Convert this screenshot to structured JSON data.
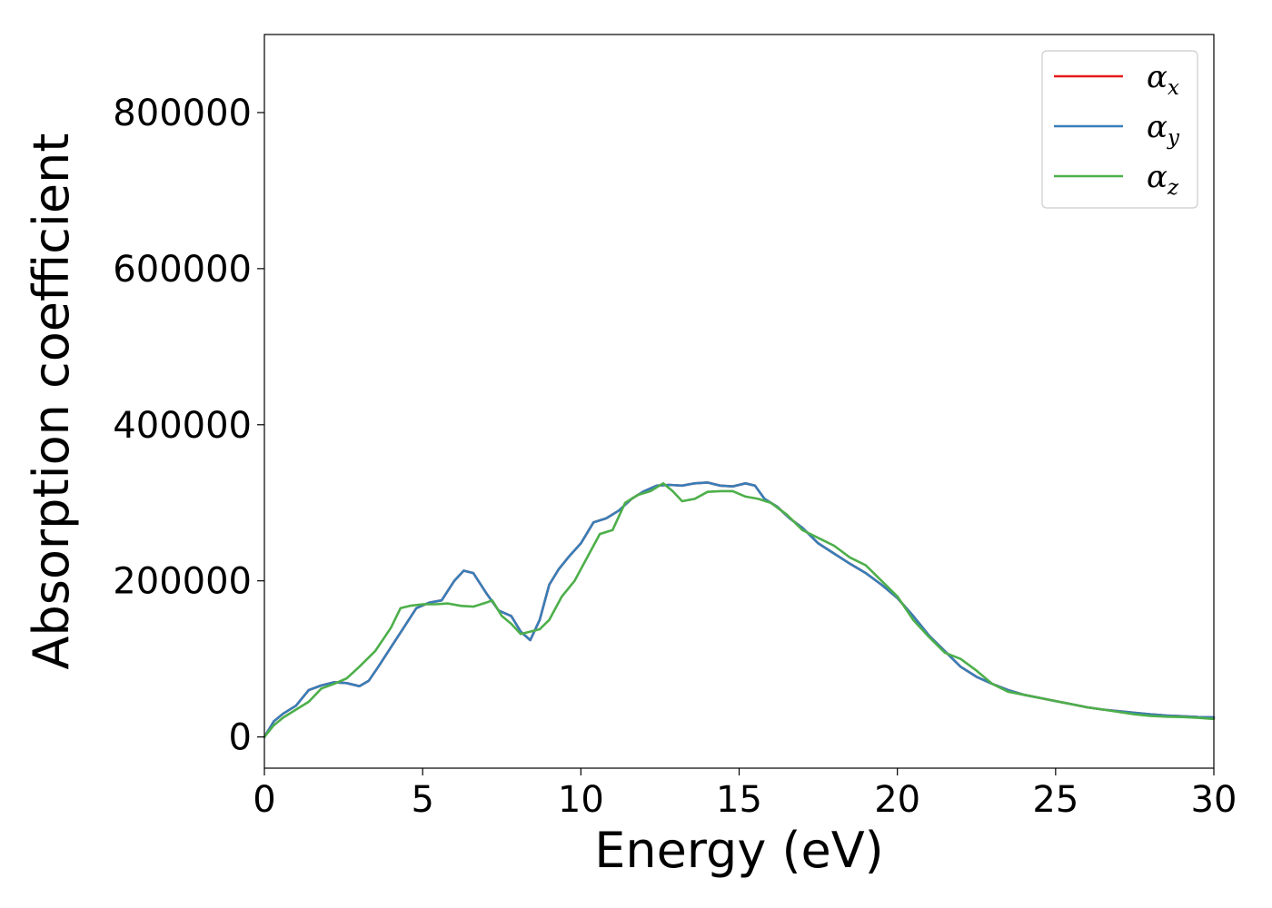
{
  "chart_data": {
    "type": "line",
    "xlabel": "Energy (eV)",
    "ylabel": "Absorption coefficient",
    "xlim": [
      0,
      30
    ],
    "ylim": [
      -40000,
      900000
    ],
    "xticks": [
      0,
      5,
      10,
      15,
      20,
      25,
      30
    ],
    "yticks": [
      0,
      200000,
      400000,
      600000,
      800000
    ],
    "xtick_labels": [
      "0",
      "5",
      "10",
      "15",
      "20",
      "25",
      "30"
    ],
    "ytick_labels": [
      "0",
      "200000",
      "400000",
      "600000",
      "800000"
    ],
    "grid": false,
    "legend_position": "top-right",
    "series": [
      {
        "name": "α_x",
        "symbol": "α",
        "subscript": "x",
        "color": "#e41a1c",
        "x": [
          0,
          0.3,
          0.6,
          1.0,
          1.4,
          1.8,
          2.2,
          2.6,
          3.0,
          3.3,
          3.6,
          4.0,
          4.4,
          4.8,
          5.2,
          5.6,
          6.0,
          6.3,
          6.6,
          7.0,
          7.4,
          7.8,
          8.1,
          8.4,
          8.7,
          9.0,
          9.3,
          9.6,
          10.0,
          10.4,
          10.8,
          11.2,
          11.6,
          12.0,
          12.4,
          12.8,
          13.2,
          13.6,
          14.0,
          14.4,
          14.8,
          15.2,
          15.5,
          15.8,
          16.2,
          16.6,
          17.0,
          17.5,
          18.0,
          18.5,
          19.0,
          19.5,
          20.0,
          20.5,
          21.0,
          21.5,
          22.0,
          22.5,
          23.0,
          23.5,
          24.0,
          24.5,
          25.0,
          25.5,
          26.0,
          26.5,
          27.0,
          27.5,
          28.0,
          28.5,
          29.0,
          29.5,
          30.0
        ],
        "y": [
          0,
          20000,
          30000,
          40000,
          60000,
          66000,
          70000,
          69000,
          65000,
          72000,
          90000,
          115000,
          140000,
          165000,
          172000,
          175000,
          200000,
          213000,
          210000,
          185000,
          162000,
          155000,
          135000,
          124000,
          150000,
          195000,
          215000,
          230000,
          248000,
          275000,
          280000,
          290000,
          305000,
          315000,
          322000,
          323000,
          322000,
          325000,
          326000,
          322000,
          321000,
          325000,
          322000,
          305000,
          295000,
          280000,
          268000,
          248000,
          235000,
          222000,
          210000,
          195000,
          178000,
          155000,
          130000,
          110000,
          90000,
          77000,
          68000,
          60000,
          54000,
          50000,
          46000,
          42000,
          38000,
          35000,
          33000,
          31000,
          29000,
          27500,
          26500,
          25500,
          25000
        ]
      },
      {
        "name": "α_y",
        "symbol": "α",
        "subscript": "y",
        "color": "#377eb8",
        "x": [
          0,
          0.3,
          0.6,
          1.0,
          1.4,
          1.8,
          2.2,
          2.6,
          3.0,
          3.3,
          3.6,
          4.0,
          4.4,
          4.8,
          5.2,
          5.6,
          6.0,
          6.3,
          6.6,
          7.0,
          7.4,
          7.8,
          8.1,
          8.4,
          8.7,
          9.0,
          9.3,
          9.6,
          10.0,
          10.4,
          10.8,
          11.2,
          11.6,
          12.0,
          12.4,
          12.8,
          13.2,
          13.6,
          14.0,
          14.4,
          14.8,
          15.2,
          15.5,
          15.8,
          16.2,
          16.6,
          17.0,
          17.5,
          18.0,
          18.5,
          19.0,
          19.5,
          20.0,
          20.5,
          21.0,
          21.5,
          22.0,
          22.5,
          23.0,
          23.5,
          24.0,
          24.5,
          25.0,
          25.5,
          26.0,
          26.5,
          27.0,
          27.5,
          28.0,
          28.5,
          29.0,
          29.5,
          30.0
        ],
        "y": [
          0,
          20000,
          30000,
          40000,
          60000,
          66000,
          70000,
          69000,
          65000,
          72000,
          90000,
          115000,
          140000,
          165000,
          172000,
          175000,
          200000,
          213000,
          210000,
          185000,
          162000,
          155000,
          135000,
          124000,
          150000,
          195000,
          215000,
          230000,
          248000,
          275000,
          280000,
          290000,
          305000,
          315000,
          322000,
          323000,
          322000,
          325000,
          326000,
          322000,
          321000,
          325000,
          322000,
          305000,
          295000,
          280000,
          268000,
          248000,
          235000,
          222000,
          210000,
          195000,
          178000,
          155000,
          130000,
          110000,
          90000,
          77000,
          68000,
          60000,
          54000,
          50000,
          46000,
          42000,
          38000,
          35000,
          33000,
          31000,
          29000,
          27500,
          26500,
          25500,
          25000
        ]
      },
      {
        "name": "α_z",
        "symbol": "α",
        "subscript": "z",
        "color": "#4daf4a",
        "x": [
          0,
          0.3,
          0.6,
          1.0,
          1.4,
          1.8,
          2.2,
          2.6,
          3.0,
          3.5,
          4.0,
          4.3,
          4.6,
          5.0,
          5.4,
          5.8,
          6.2,
          6.6,
          7.0,
          7.2,
          7.5,
          7.8,
          8.1,
          8.4,
          8.7,
          9.0,
          9.4,
          9.8,
          10.2,
          10.6,
          11.0,
          11.4,
          11.8,
          12.2,
          12.6,
          12.9,
          13.2,
          13.6,
          14.0,
          14.4,
          14.8,
          15.2,
          15.6,
          16.0,
          16.5,
          17.0,
          17.5,
          18.0,
          18.5,
          19.0,
          19.5,
          20.0,
          20.5,
          21.0,
          21.5,
          22.0,
          22.5,
          23.0,
          23.5,
          24.0,
          24.5,
          25.0,
          25.5,
          26.0,
          26.5,
          27.0,
          27.5,
          28.0,
          28.5,
          29.0,
          29.5,
          30.0
        ],
        "y": [
          0,
          15000,
          25000,
          35000,
          45000,
          62000,
          68000,
          75000,
          90000,
          110000,
          140000,
          165000,
          168000,
          170000,
          170000,
          171000,
          168000,
          167000,
          172000,
          175000,
          155000,
          145000,
          132000,
          135000,
          138000,
          150000,
          180000,
          200000,
          230000,
          260000,
          265000,
          300000,
          310000,
          315000,
          325000,
          315000,
          302000,
          305000,
          314000,
          315000,
          315000,
          308000,
          305000,
          300000,
          285000,
          265000,
          255000,
          245000,
          230000,
          220000,
          200000,
          180000,
          150000,
          128000,
          108000,
          100000,
          85000,
          68000,
          58000,
          54000,
          50000,
          46000,
          42000,
          38000,
          35000,
          32000,
          29000,
          27000,
          26000,
          25500,
          24500,
          23000
        ]
      }
    ]
  }
}
